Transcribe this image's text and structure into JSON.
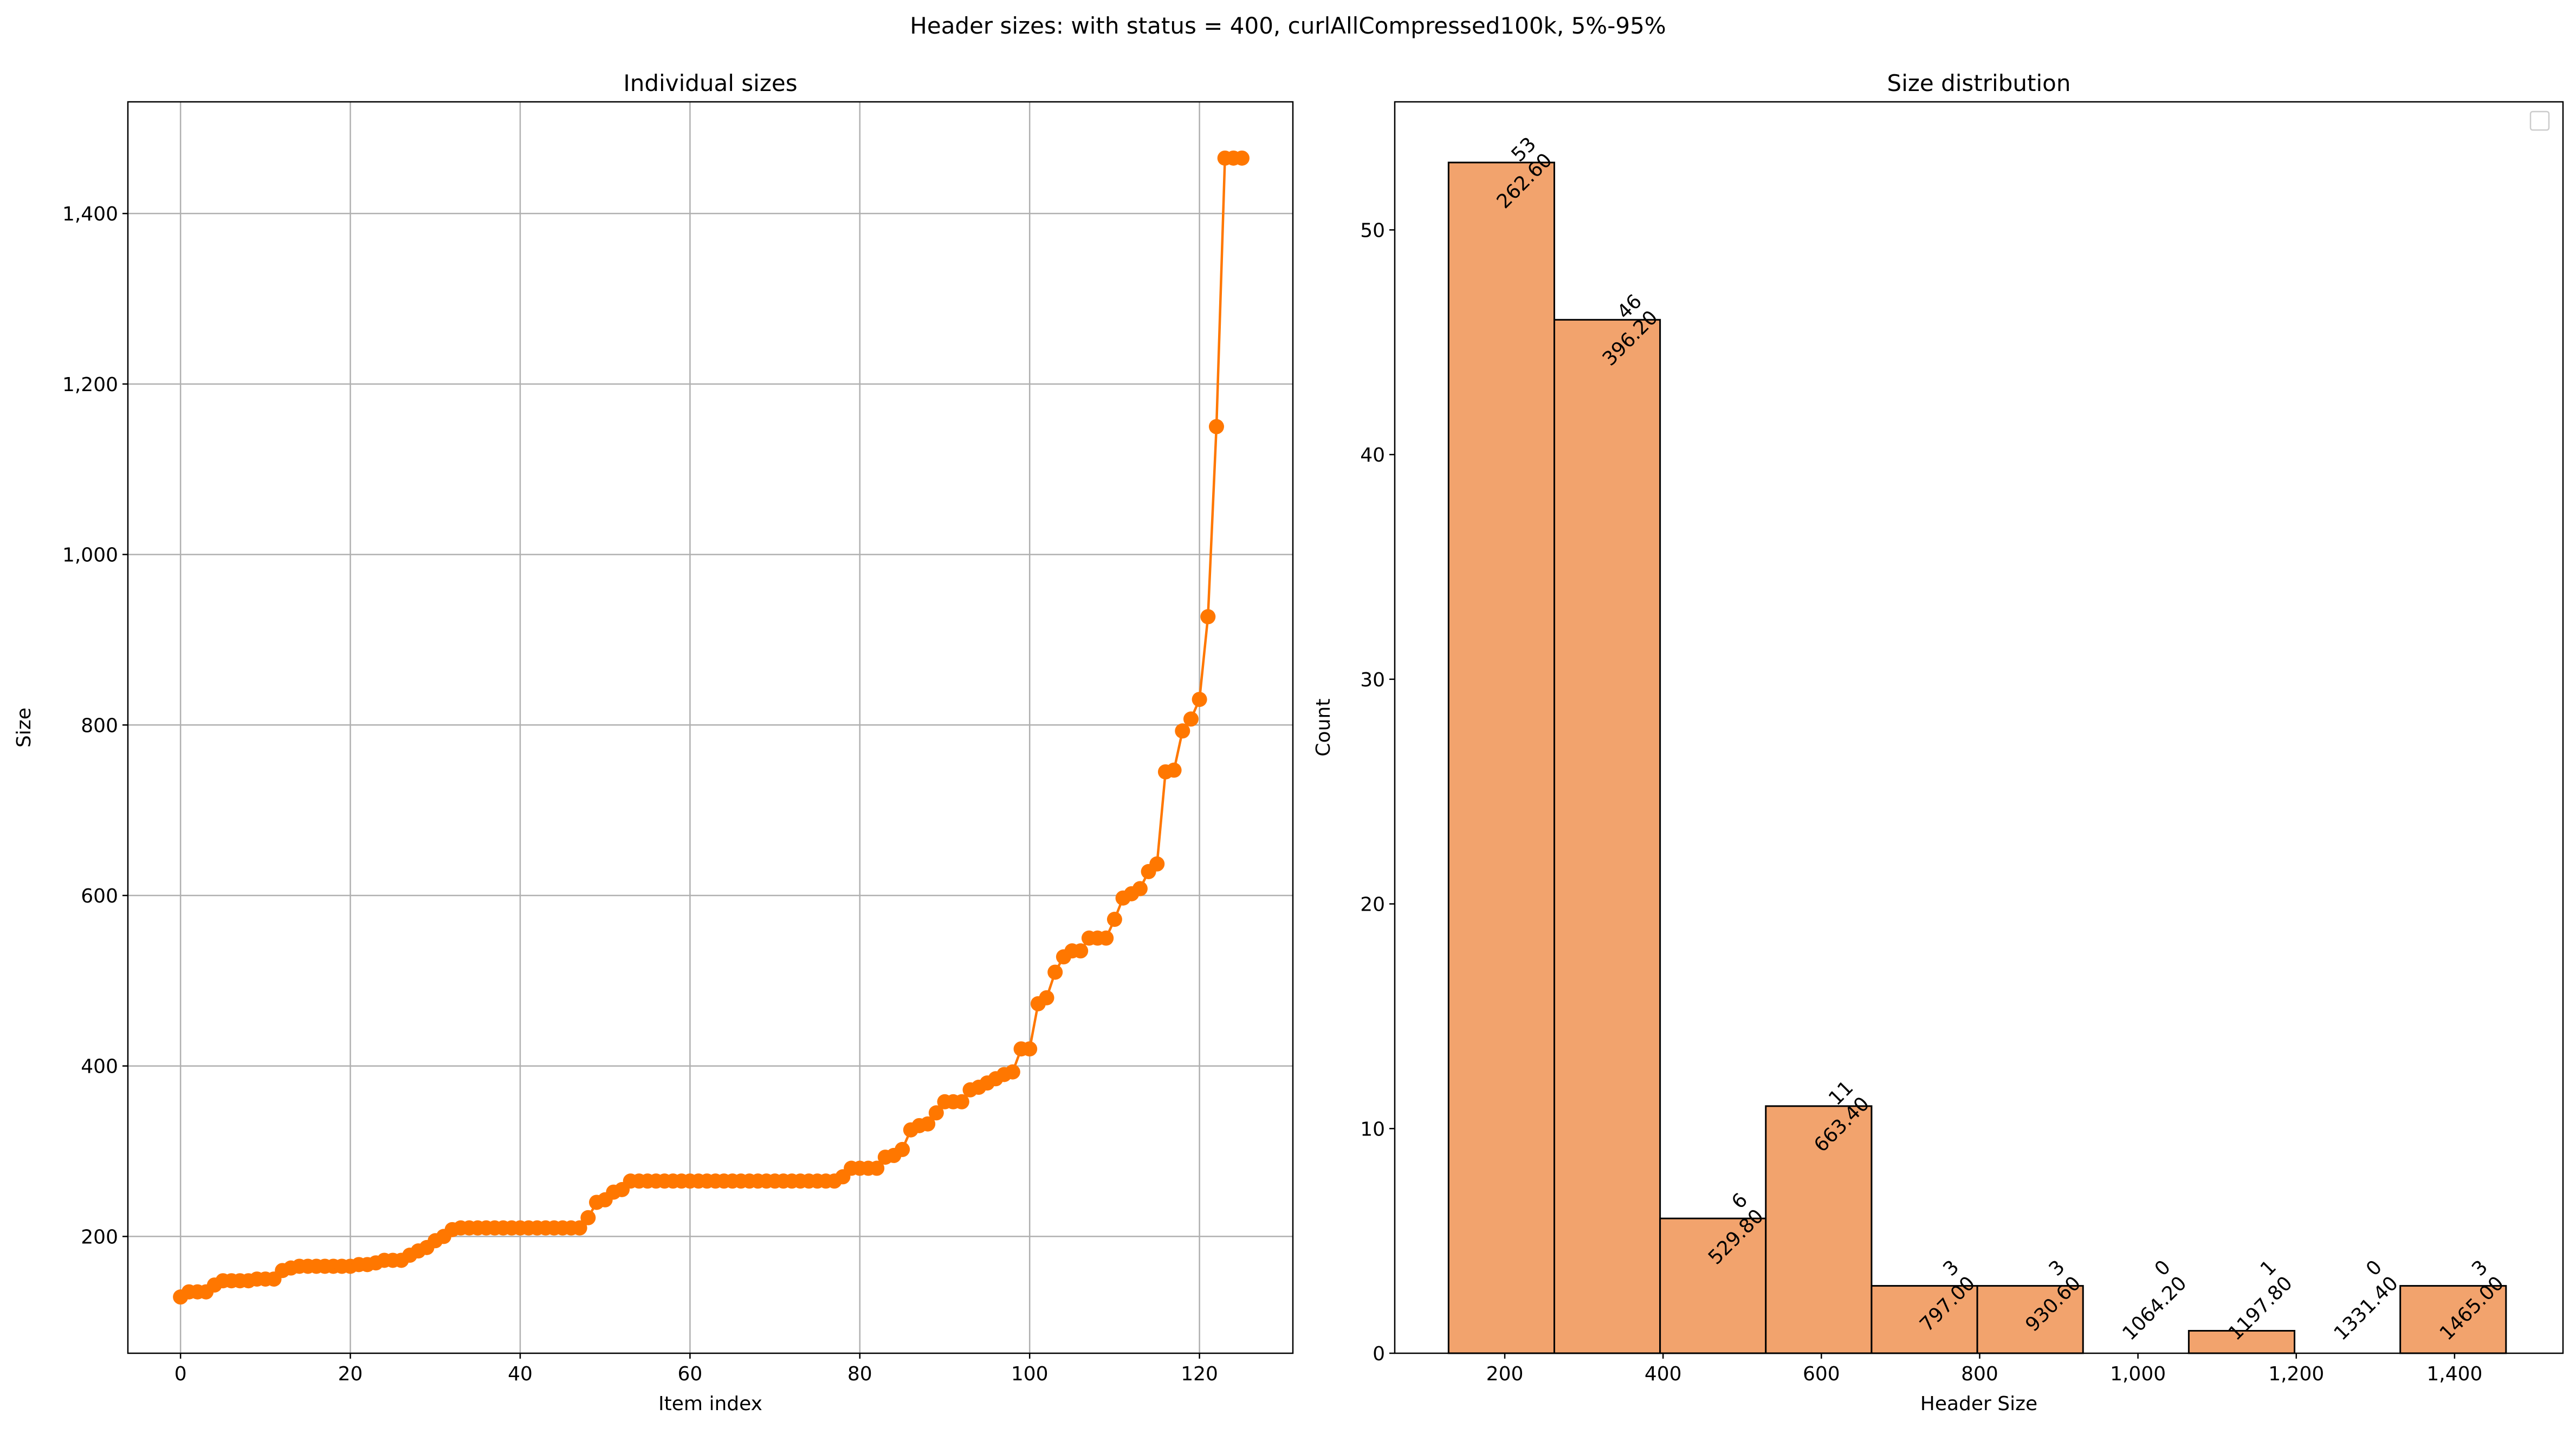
{
  "suptitle": "Header sizes: with status = 400, curlAllCompressed100k, 5%-95%",
  "colors": {
    "line": "#ff7700",
    "bar": "#f2a36d",
    "edge": "#000000",
    "grid": "#b0b0b0"
  },
  "chart_data": [
    {
      "type": "line",
      "title": "Individual sizes",
      "xlabel": "Item index",
      "ylabel": "Size",
      "xlim": [
        -6.2,
        131
      ],
      "ylim": [
        63,
        1531
      ],
      "grid": true,
      "xticks": [
        0,
        20,
        40,
        60,
        80,
        100,
        120
      ],
      "xtick_labels": [
        "0",
        "20",
        "40",
        "60",
        "80",
        "100",
        "120"
      ],
      "yticks": [
        200,
        400,
        600,
        800,
        1000,
        1200,
        1400
      ],
      "ytick_labels": [
        "200",
        "400",
        "600",
        "800",
        "1,000",
        "1,200",
        "1,400"
      ],
      "values": [
        129,
        135,
        135,
        135,
        143,
        148,
        148,
        148,
        148,
        150,
        150,
        150,
        160,
        163,
        165,
        165,
        165,
        165,
        165,
        165,
        165,
        167,
        167,
        169,
        172,
        172,
        172,
        178,
        183,
        187,
        195,
        200,
        208,
        210,
        210,
        210,
        210,
        210,
        210,
        210,
        210,
        210,
        210,
        210,
        210,
        210,
        210,
        210,
        222,
        240,
        243,
        252,
        255,
        265,
        265,
        265,
        265,
        265,
        265,
        265,
        265,
        265,
        265,
        265,
        265,
        265,
        265,
        265,
        265,
        265,
        265,
        265,
        265,
        265,
        265,
        265,
        265,
        265,
        270,
        280,
        280,
        280,
        280,
        293,
        295,
        302,
        325,
        330,
        332,
        345,
        358,
        358,
        358,
        372,
        375,
        380,
        385,
        390,
        393,
        420,
        420,
        473,
        480,
        510,
        528,
        535,
        535,
        550,
        550,
        550,
        572,
        597,
        602,
        608,
        628,
        637,
        745,
        747,
        793,
        807,
        830,
        927,
        1150,
        1465,
        1465,
        1465
      ]
    },
    {
      "type": "bar",
      "title": "Size distribution",
      "xlabel": "Header Size",
      "ylabel": "Count",
      "xlim": [
        61,
        1537
      ],
      "ylim": [
        0,
        55.7
      ],
      "grid": false,
      "legend": "top-right (empty)",
      "xticks": [
        200,
        400,
        600,
        800,
        1000,
        1200,
        1400
      ],
      "xtick_labels": [
        "200",
        "400",
        "600",
        "800",
        "1,000",
        "1,200",
        "1,400"
      ],
      "yticks": [
        0,
        10,
        20,
        30,
        40,
        50
      ],
      "ytick_labels": [
        "0",
        "10",
        "20",
        "30",
        "40",
        "50"
      ],
      "bin_edges": [
        129.0,
        262.6,
        396.2,
        529.8,
        663.4,
        797.0,
        930.6,
        1064.2,
        1197.8,
        1331.4,
        1465.0
      ],
      "counts": [
        53,
        46,
        6,
        11,
        3,
        3,
        0,
        1,
        0,
        3
      ],
      "annotations": [
        {
          "count": "53",
          "edge": "262.60"
        },
        {
          "count": "46",
          "edge": "396.20"
        },
        {
          "count": "6",
          "edge": "529.80"
        },
        {
          "count": "11",
          "edge": "663.40"
        },
        {
          "count": "3",
          "edge": "797.00"
        },
        {
          "count": "3",
          "edge": "930.60"
        },
        {
          "count": "0",
          "edge": "1064.20"
        },
        {
          "count": "1",
          "edge": "1197.80"
        },
        {
          "count": "0",
          "edge": "1331.40"
        },
        {
          "count": "3",
          "edge": "1465.00"
        }
      ]
    }
  ]
}
